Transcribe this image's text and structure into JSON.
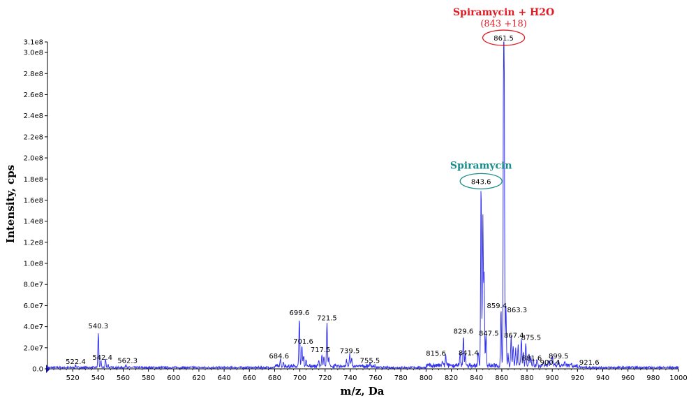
{
  "chart_data": {
    "type": "line",
    "xlabel": "m/z, Da",
    "ylabel": "Intensity, cps",
    "xlim": [
      500,
      1000
    ],
    "ylim": [
      0,
      310000000
    ],
    "x_ticks": [
      520,
      540,
      560,
      580,
      600,
      620,
      640,
      660,
      680,
      700,
      720,
      740,
      760,
      780,
      800,
      820,
      840,
      860,
      880,
      900,
      920,
      940,
      960,
      980,
      1000
    ],
    "y_ticks": [
      {
        "value": 0,
        "label": "0.0"
      },
      {
        "value": 20000000,
        "label": "2.0e7"
      },
      {
        "value": 40000000,
        "label": "4.0e7"
      },
      {
        "value": 60000000,
        "label": "6.0e7"
      },
      {
        "value": 80000000,
        "label": "8.0e7"
      },
      {
        "value": 100000000,
        "label": "1.0e8"
      },
      {
        "value": 120000000,
        "label": "1.2e8"
      },
      {
        "value": 140000000,
        "label": "1.4e8"
      },
      {
        "value": 160000000,
        "label": "1.6e8"
      },
      {
        "value": 180000000,
        "label": "1.8e8"
      },
      {
        "value": 200000000,
        "label": "2.0e8"
      },
      {
        "value": 220000000,
        "label": "2.2e8"
      },
      {
        "value": 240000000,
        "label": "2.4e8"
      },
      {
        "value": 260000000,
        "label": "2.6e8"
      },
      {
        "value": 280000000,
        "label": "2.8e8"
      },
      {
        "value": 300000000,
        "label": "3.0e8"
      },
      {
        "value": 310000000,
        "label": "3.1e8"
      }
    ],
    "series": [
      {
        "color": "#3333ee",
        "peaks": [
          {
            "mz": 522.4,
            "intensity": 2000000,
            "label": "522.4"
          },
          {
            "mz": 540.3,
            "intensity": 33000000,
            "label": "540.3"
          },
          {
            "mz": 542.4,
            "intensity": 6000000,
            "label": "542.4"
          },
          {
            "mz": 562.3,
            "intensity": 3000000,
            "label": "562.3"
          },
          {
            "mz": 684.6,
            "intensity": 6000000,
            "label": "684.6"
          },
          {
            "mz": 699.6,
            "intensity": 47000000,
            "label": "699.6"
          },
          {
            "mz": 701.6,
            "intensity": 20000000,
            "label": "701.6"
          },
          {
            "mz": 717.5,
            "intensity": 12000000,
            "label": "717.5"
          },
          {
            "mz": 721.5,
            "intensity": 42000000,
            "label": "721.5"
          },
          {
            "mz": 739.5,
            "intensity": 11000000,
            "label": "739.5"
          },
          {
            "mz": 755.5,
            "intensity": 3000000,
            "label": "755.5"
          },
          {
            "mz": 815.6,
            "intensity": 10000000,
            "label": "815.6"
          },
          {
            "mz": 829.6,
            "intensity": 28000000,
            "label": "829.6"
          },
          {
            "mz": 841.4,
            "intensity": 13000000,
            "label": "841.4"
          },
          {
            "mz": 843.6,
            "intensity": 170000000,
            "label": "843.6"
          },
          {
            "mz": 847.5,
            "intensity": 30000000,
            "label": "847.5"
          },
          {
            "mz": 859.4,
            "intensity": 55000000,
            "label": "859.4"
          },
          {
            "mz": 861.5,
            "intensity": 306000000,
            "label": "861.5"
          },
          {
            "mz": 863.3,
            "intensity": 55000000,
            "label": "863.3"
          },
          {
            "mz": 867.4,
            "intensity": 28000000,
            "label": "867.4"
          },
          {
            "mz": 875.5,
            "intensity": 25000000,
            "label": "875.5"
          },
          {
            "mz": 881.6,
            "intensity": 12000000,
            "label": "881.6"
          },
          {
            "mz": 899.5,
            "intensity": 6000000,
            "label": "899.5"
          },
          {
            "mz": 900.4,
            "intensity": 7000000,
            "label": "900.4"
          },
          {
            "mz": 921.6,
            "intensity": 2000000,
            "label": "921.6"
          }
        ]
      }
    ],
    "annotations": [
      {
        "title": "Spiramycin",
        "peak": "843.6",
        "color": "#1a8c8c"
      },
      {
        "title": "Spiramycin + H2O",
        "subtitle": "(843 +18)",
        "peak": "861.5",
        "color": "#e01b24"
      }
    ],
    "grid": false
  }
}
